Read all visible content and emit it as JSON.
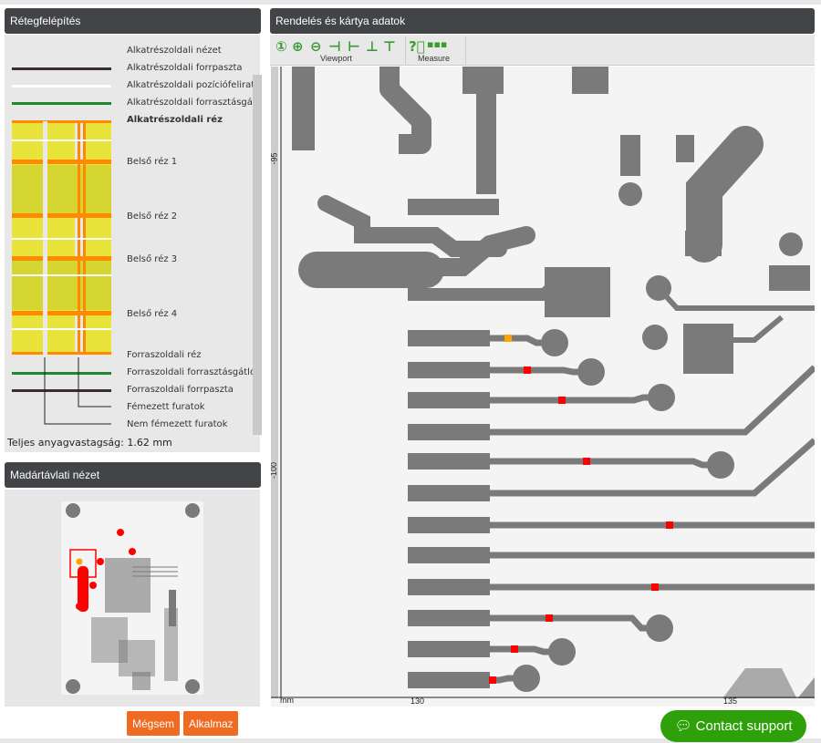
{
  "layers_panel": {
    "title": "Rétegfelépítés",
    "layers": [
      "Alkatrészoldali nézet",
      "Alkatrészoldali forrpaszta",
      "Alkatrészoldali pozíciófelirat",
      "Alkatrészoldali forrasztásgátló",
      "Alkatrészoldali réz",
      "Belső réz 1",
      "Belső réz 2",
      "Belső réz 3",
      "Belső réz 4",
      "Forraszoldali réz",
      "Forraszoldali forrasztásgátló",
      "Forraszoldali forrpaszta",
      "Fémezett furatok",
      "Nem fémezett furatok"
    ],
    "total_thickness": "Teljes anyagvastagság: 1.62 mm"
  },
  "birdseye_panel": {
    "title": "Madártávlati nézet"
  },
  "buttons": {
    "cancel": "Mégsem",
    "apply": "Alkalmaz"
  },
  "main_panel": {
    "title": "Rendelés és kártya adatok",
    "toolbar": {
      "groups": [
        {
          "label": "Viewport",
          "icons": [
            "zoom-fit-icon",
            "zoom-in-icon",
            "zoom-out-icon",
            "align-left-icon",
            "align-right-icon",
            "align-top-icon",
            "align-bottom-icon"
          ]
        },
        {
          "label": "Measure",
          "icons": [
            "help-icon",
            "measure-icon"
          ]
        }
      ]
    },
    "ruler": {
      "unit": "mm",
      "x_ticks": [
        "130",
        "135"
      ],
      "y_ticks": [
        "-95",
        "-100"
      ]
    }
  },
  "contact_support": "Contact support",
  "colors": {
    "accent": "#f06a22",
    "header": "#424448",
    "support": "#2ea10a",
    "copper": "#7a7a7a",
    "marker": "#ff0000",
    "marker_selected": "#ffa500"
  }
}
